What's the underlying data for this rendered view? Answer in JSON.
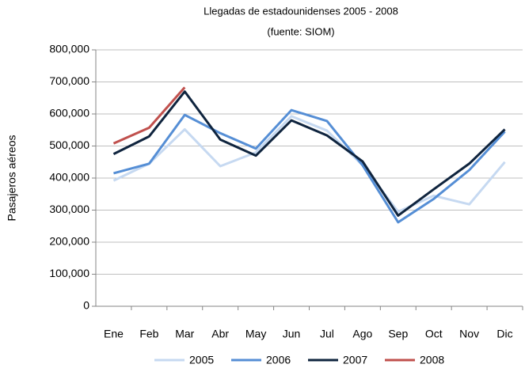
{
  "chart_data": {
    "type": "line",
    "title": "Llegadas de estadounidenses 2005 - 2008",
    "subtitle": "(fuente: SIOM)",
    "y_label": "Pasajeros aéreos",
    "categories": [
      "Ene",
      "Feb",
      "Mar",
      "Abr",
      "May",
      "Jun",
      "Jul",
      "Ago",
      "Sep",
      "Oct",
      "Nov",
      "Dic"
    ],
    "series": [
      {
        "name": "2005",
        "color": "#c6d9f1",
        "values": [
          392000,
          445000,
          552000,
          437000,
          480000,
          593000,
          548000,
          440000,
          295000,
          345000,
          318000,
          450000
        ]
      },
      {
        "name": "2006",
        "color": "#558ed5",
        "values": [
          415000,
          445000,
          597000,
          540000,
          492000,
          612000,
          578000,
          440000,
          262000,
          335000,
          425000,
          545000
        ]
      },
      {
        "name": "2007",
        "color": "#0f243e",
        "values": [
          475000,
          530000,
          670000,
          520000,
          470000,
          580000,
          533000,
          452000,
          283000,
          365000,
          445000,
          552000
        ]
      },
      {
        "name": "2008",
        "color": "#c0504d",
        "values": [
          508000,
          557000,
          683000,
          null,
          null,
          null,
          null,
          null,
          null,
          null,
          null,
          null
        ]
      }
    ],
    "ylim": [
      0,
      800000
    ],
    "yticks": [
      0,
      {
        "value": 100000,
        "label": "100,000"
      },
      {
        "value": 200000,
        "label": "200,000"
      },
      {
        "value": 300000,
        "label": "300,000"
      },
      {
        "value": 400000,
        "label": "400,000"
      },
      {
        "value": 500000,
        "label": "500,000"
      },
      {
        "value": 600000,
        "label": "600,000"
      },
      {
        "value": 700000,
        "label": "700,000"
      },
      {
        "value": 800000,
        "label": "800,000"
      }
    ],
    "grid": true,
    "legend": "bottom"
  }
}
